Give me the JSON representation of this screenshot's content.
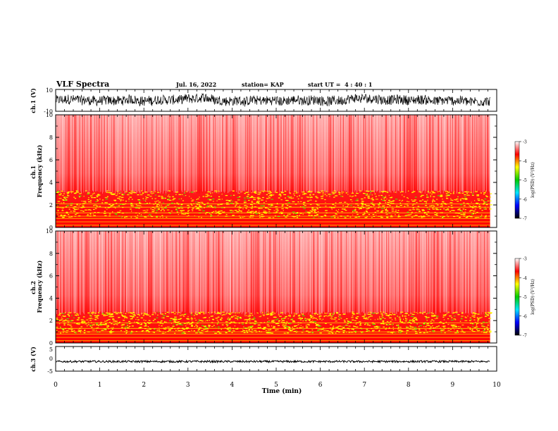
{
  "header": {
    "title": "VLF Spectra",
    "date": "Jul. 16, 2022",
    "station": "station= KAP",
    "start_ut": "start UT =  4 : 40 : 1"
  },
  "colorbar": {
    "label": "log(PSD) (V²/Hz)",
    "ticks": [
      "-3",
      "-4",
      "-5",
      "-6",
      "-7"
    ],
    "colors": [
      "#ffffff",
      "#ff0000",
      "#ffff00",
      "#00cc00",
      "#00e5ff",
      "#0000ff",
      "#000000"
    ]
  },
  "chart_data": [
    {
      "type": "line",
      "panel": "ch1-waveform",
      "ylabel": "ch.1 (V)",
      "y_ticks": [
        "10",
        "-10"
      ],
      "ylim": [
        -10,
        10
      ],
      "xlim": [
        0,
        10
      ],
      "series": [
        {
          "x": [
            0,
            9.85
          ],
          "y_range": [
            -6,
            6
          ]
        }
      ]
    },
    {
      "type": "heatmap",
      "panel": "ch1-spectrogram",
      "ylabel": "ch.1 Frequency (kHz)",
      "y_ticks": [
        "0",
        "2",
        "4",
        "6",
        "8",
        "10"
      ],
      "ylim": [
        0,
        10
      ],
      "xlim": [
        0,
        10
      ],
      "data_end_min": 9.85,
      "bands_khz": {
        "strong_upper": 3.3,
        "lines": [
          0.2,
          0.5,
          0.8,
          1.0,
          1.3,
          1.8,
          2.1
        ]
      }
    },
    {
      "type": "heatmap",
      "panel": "ch2-spectrogram",
      "ylabel": "ch.2 Frequency (kHz)",
      "y_ticks": [
        "0",
        "2",
        "4",
        "6",
        "8",
        "10"
      ],
      "ylim": [
        0,
        10
      ],
      "xlim": [
        0,
        10
      ],
      "data_end_min": 9.85,
      "bands_khz": {
        "strong_upper": 2.8,
        "lines": [
          0.2,
          0.5,
          0.8,
          1.0,
          1.3,
          1.8
        ]
      }
    },
    {
      "type": "line",
      "panel": "ch3-waveform",
      "ylabel": "ch.3 (V)",
      "y_ticks": [
        "5",
        "0",
        "-5"
      ],
      "ylim": [
        -5,
        5
      ],
      "xlim": [
        0,
        10
      ],
      "series": [
        {
          "x": [
            0,
            9.85
          ],
          "y_range": [
            -1.5,
            -0.7
          ]
        }
      ]
    }
  ],
  "x_axis": {
    "label": "Time (min)",
    "ticks": [
      "0",
      "1",
      "2",
      "3",
      "4",
      "5",
      "6",
      "7",
      "8",
      "9",
      "10"
    ]
  }
}
